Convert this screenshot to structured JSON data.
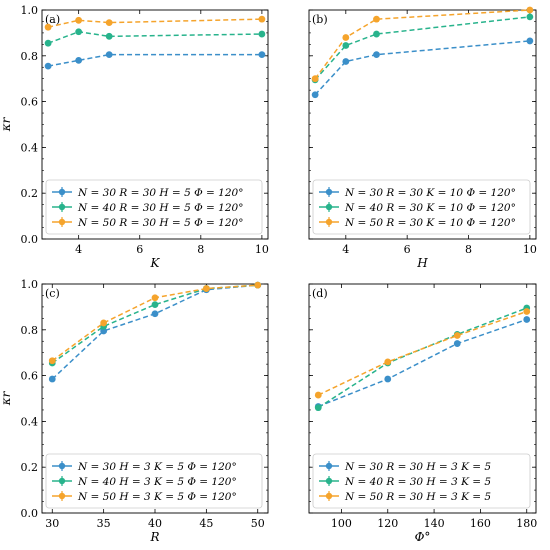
{
  "chart_data": [
    {
      "type": "line",
      "panel_label": "(a)",
      "xlabel": "K",
      "ylabel": "κr",
      "xlim": [
        2.8,
        10.2
      ],
      "ylim": [
        0.0,
        1.0
      ],
      "xticks": [
        4,
        6,
        8,
        10
      ],
      "yticks": [
        0.0,
        0.2,
        0.4,
        0.6,
        0.8,
        1.0
      ],
      "ytick_labels_shown": true,
      "grid": false,
      "legend_position": "bottom-right",
      "x": [
        3,
        4,
        5,
        10
      ],
      "series": [
        {
          "name": "N = 30   R = 30   H = 5   Φ = 120°",
          "color": "#3b8fc9",
          "values": [
            0.755,
            0.78,
            0.805,
            0.805
          ]
        },
        {
          "name": "N = 40   R = 30   H = 5   Φ = 120°",
          "color": "#28b38c",
          "values": [
            0.855,
            0.905,
            0.885,
            0.895
          ]
        },
        {
          "name": "N = 50   R = 30   H = 5   Φ = 120°",
          "color": "#f5a42c",
          "values": [
            0.925,
            0.955,
            0.945,
            0.96
          ]
        }
      ]
    },
    {
      "type": "line",
      "panel_label": "(b)",
      "xlabel": "H",
      "ylabel": "",
      "xlim": [
        2.8,
        10.2
      ],
      "ylim": [
        0.0,
        1.0
      ],
      "xticks": [
        4,
        6,
        8,
        10
      ],
      "yticks": [
        0.0,
        0.2,
        0.4,
        0.6,
        0.8,
        1.0
      ],
      "ytick_labels_shown": false,
      "grid": false,
      "legend_position": "bottom-right",
      "x": [
        3,
        4,
        5,
        10
      ],
      "series": [
        {
          "name": "N = 30   R = 30   K = 10   Φ = 120°",
          "color": "#3b8fc9",
          "values": [
            0.63,
            0.775,
            0.805,
            0.865
          ]
        },
        {
          "name": "N = 40   R = 30   K = 10   Φ = 120°",
          "color": "#28b38c",
          "values": [
            0.695,
            0.845,
            0.895,
            0.97
          ]
        },
        {
          "name": "N = 50   R = 30   K = 10   Φ = 120°",
          "color": "#f5a42c",
          "values": [
            0.7,
            0.88,
            0.96,
            1.0
          ]
        }
      ]
    },
    {
      "type": "line",
      "panel_label": "(c)",
      "xlabel": "R",
      "ylabel": "κr",
      "xlim": [
        29,
        51
      ],
      "ylim": [
        0.0,
        1.0
      ],
      "xticks": [
        30,
        35,
        40,
        45,
        50
      ],
      "yticks": [
        0.0,
        0.2,
        0.4,
        0.6,
        0.8,
        1.0
      ],
      "ytick_labels_shown": true,
      "grid": false,
      "legend_position": "bottom-right",
      "x": [
        30,
        35,
        40,
        45,
        50
      ],
      "series": [
        {
          "name": "N = 30   H = 3   K = 5   Φ = 120°",
          "color": "#3b8fc9",
          "values": [
            0.585,
            0.795,
            0.87,
            0.975,
            0.995
          ]
        },
        {
          "name": "N = 40   H = 3   K = 5   Φ = 120°",
          "color": "#28b38c",
          "values": [
            0.655,
            0.815,
            0.91,
            0.98,
            0.995
          ]
        },
        {
          "name": "N = 50   H = 3   K = 5   Φ = 120°",
          "color": "#f5a42c",
          "values": [
            0.665,
            0.83,
            0.94,
            0.98,
            0.995
          ]
        }
      ]
    },
    {
      "type": "line",
      "panel_label": "(d)",
      "xlabel": "Φ°",
      "ylabel": "",
      "xlim": [
        86,
        184
      ],
      "ylim": [
        0.0,
        1.0
      ],
      "xticks": [
        100,
        120,
        140,
        160,
        180
      ],
      "yticks": [
        0.0,
        0.2,
        0.4,
        0.6,
        0.8,
        1.0
      ],
      "ytick_labels_shown": false,
      "grid": false,
      "legend_position": "bottom-right",
      "x": [
        90,
        120,
        150,
        180
      ],
      "series": [
        {
          "name": "N = 30   R = 30   H = 3   K = 5",
          "color": "#3b8fc9",
          "values": [
            0.465,
            0.585,
            0.74,
            0.845
          ]
        },
        {
          "name": "N = 40   R = 30   H = 3   K = 5",
          "color": "#28b38c",
          "values": [
            0.46,
            0.655,
            0.78,
            0.895
          ]
        },
        {
          "name": "N = 50   R = 30   H = 3   K = 5",
          "color": "#f5a42c",
          "values": [
            0.515,
            0.66,
            0.775,
            0.88
          ]
        }
      ]
    }
  ]
}
